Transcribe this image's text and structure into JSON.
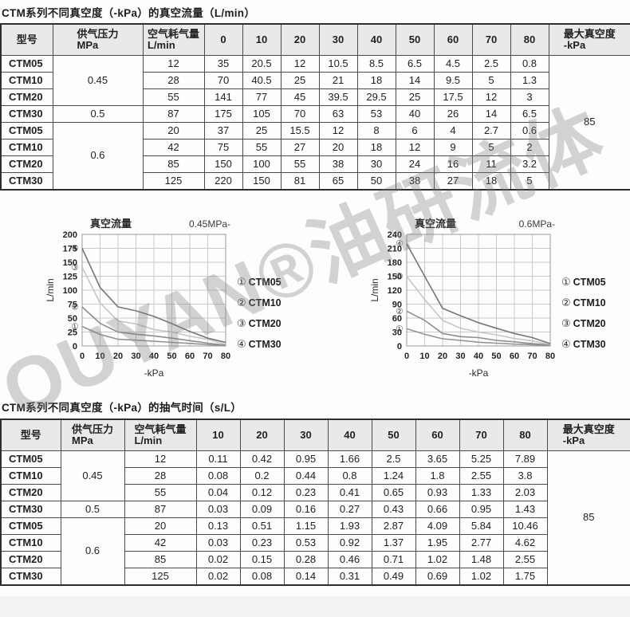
{
  "page": {
    "title1": "CTM系列不同真空度（-kPa）的真空流量（L/min）",
    "title2": "CTM系列不同真空度（-kPa）的抽气时间（s/L）",
    "watermark": "YOUYAN®油研流体"
  },
  "flow_table": {
    "headers": {
      "model": "型号",
      "pressure": [
        "供气压力",
        "MPa"
      ],
      "air_consumption": [
        "空气耗气量",
        "L/min"
      ],
      "vacuum_levels": [
        "0",
        "10",
        "20",
        "30",
        "40",
        "50",
        "60",
        "70",
        "80"
      ],
      "max_vacuum": [
        "最大真空度",
        "-kPa"
      ]
    },
    "max_vacuum_value": "85",
    "rows": [
      {
        "model": "CTM05",
        "pressure": "0.45",
        "pressure_span": 3,
        "air": "12",
        "values": [
          "35",
          "20.5",
          "12",
          "10.5",
          "8.5",
          "6.5",
          "4.5",
          "2.5",
          "0.8"
        ]
      },
      {
        "model": "CTM10",
        "air": "28",
        "values": [
          "70",
          "40.5",
          "25",
          "21",
          "18",
          "14",
          "9.5",
          "5",
          "1.3"
        ]
      },
      {
        "model": "CTM20",
        "air": "55",
        "values": [
          "141",
          "77",
          "45",
          "39.5",
          "29.5",
          "25",
          "17.5",
          "12",
          "3"
        ]
      },
      {
        "model": "CTM30",
        "pressure": "0.5",
        "pressure_span": 1,
        "air": "87",
        "values": [
          "175",
          "105",
          "70",
          "63",
          "53",
          "40",
          "26",
          "14",
          "6.5"
        ]
      },
      {
        "model": "CTM05",
        "pressure": "0.6",
        "pressure_span": 4,
        "air": "20",
        "values": [
          "37",
          "25",
          "15.5",
          "12",
          "8",
          "6",
          "4",
          "2.7",
          "0.6"
        ]
      },
      {
        "model": "CTM10",
        "air": "42",
        "values": [
          "75",
          "55",
          "27",
          "20",
          "18",
          "12",
          "9",
          "5",
          "2"
        ]
      },
      {
        "model": "CTM20",
        "air": "85",
        "values": [
          "150",
          "100",
          "55",
          "38",
          "30",
          "24",
          "16",
          "11",
          "3.2"
        ]
      },
      {
        "model": "CTM30",
        "air": "125",
        "values": [
          "220",
          "150",
          "81",
          "65",
          "50",
          "38",
          "27",
          "18",
          "5"
        ]
      }
    ]
  },
  "time_table": {
    "headers": {
      "model": "型号",
      "pressure": [
        "供气压力",
        "MPa"
      ],
      "air_consumption": [
        "空气耗气量",
        "L/min"
      ],
      "vacuum_levels": [
        "10",
        "20",
        "30",
        "40",
        "50",
        "60",
        "70",
        "80"
      ],
      "max_vacuum": [
        "最大真空度",
        "-kPa"
      ]
    },
    "max_vacuum_value": "85",
    "rows": [
      {
        "model": "CTM05",
        "pressure": "0.45",
        "pressure_span": 3,
        "air": "12",
        "values": [
          "0.11",
          "0.42",
          "0.95",
          "1.66",
          "2.5",
          "3.65",
          "5.25",
          "7.89"
        ]
      },
      {
        "model": "CTM10",
        "air": "28",
        "values": [
          "0.08",
          "0.2",
          "0.44",
          "0.8",
          "1.24",
          "1.8",
          "2.55",
          "3.8"
        ]
      },
      {
        "model": "CTM20",
        "air": "55",
        "values": [
          "0.04",
          "0.12",
          "0.23",
          "0.41",
          "0.65",
          "0.93",
          "1.33",
          "2.03"
        ]
      },
      {
        "model": "CTM30",
        "pressure": "0.5",
        "pressure_span": 1,
        "air": "87",
        "values": [
          "0.03",
          "0.09",
          "0.16",
          "0.27",
          "0.43",
          "0.66",
          "0.95",
          "1.43"
        ]
      },
      {
        "model": "CTM05",
        "pressure": "0.6",
        "pressure_span": 4,
        "air": "20",
        "values": [
          "0.13",
          "0.51",
          "1.15",
          "1.93",
          "2.87",
          "4.09",
          "5.84",
          "10.46"
        ]
      },
      {
        "model": "CTM10",
        "air": "42",
        "values": [
          "0.03",
          "0.23",
          "0.53",
          "0.92",
          "1.37",
          "1.95",
          "2.77",
          "4.62"
        ]
      },
      {
        "model": "CTM20",
        "air": "85",
        "values": [
          "0.02",
          "0.15",
          "0.28",
          "0.46",
          "0.71",
          "1.02",
          "1.48",
          "2.55"
        ]
      },
      {
        "model": "CTM30",
        "air": "125",
        "values": [
          "0.02",
          "0.08",
          "0.14",
          "0.31",
          "0.49",
          "0.69",
          "1.02",
          "1.75"
        ]
      }
    ]
  },
  "chart_data": [
    {
      "type": "line",
      "title": "真空流量",
      "pressure_label": "0.45MPa-",
      "xlabel": "-kPa",
      "ylabel": "L/min",
      "x": [
        0,
        10,
        20,
        30,
        40,
        50,
        60,
        70,
        80
      ],
      "ylim": [
        0,
        200
      ],
      "ytick_step": 25,
      "grid": true,
      "legend_position": "right",
      "series": [
        {
          "name": "CTM05",
          "marker": "①",
          "color": "#949494",
          "values": [
            35,
            20.5,
            12,
            10.5,
            8.5,
            6.5,
            4.5,
            2.5,
            0.8
          ]
        },
        {
          "name": "CTM10",
          "marker": "②",
          "color": "#8e8e8e",
          "values": [
            70,
            40.5,
            25,
            21,
            18,
            14,
            9.5,
            5,
            1.3
          ]
        },
        {
          "name": "CTM20",
          "marker": "③",
          "color": "#c6c6c6",
          "values": [
            141,
            77,
            45,
            39.5,
            29.5,
            25,
            17.5,
            12,
            3
          ]
        },
        {
          "name": "CTM30",
          "marker": "④",
          "color": "#767676",
          "values": [
            175,
            105,
            70,
            63,
            53,
            40,
            26,
            14,
            6.5
          ]
        }
      ]
    },
    {
      "type": "line",
      "title": "真空流量",
      "pressure_label": "0.6MPa-",
      "xlabel": "-kPa",
      "ylabel": "L/min",
      "x": [
        0,
        10,
        20,
        30,
        40,
        50,
        60,
        70,
        80
      ],
      "ylim": [
        0,
        240
      ],
      "ytick_step": 30,
      "grid": true,
      "legend_position": "right",
      "series": [
        {
          "name": "CTM05",
          "marker": "①",
          "color": "#949494",
          "values": [
            37,
            25,
            15.5,
            12,
            8,
            6,
            4,
            2.7,
            0.6
          ]
        },
        {
          "name": "CTM10",
          "marker": "②",
          "color": "#8e8e8e",
          "values": [
            75,
            55,
            27,
            20,
            18,
            12,
            9,
            5,
            2
          ]
        },
        {
          "name": "CTM20",
          "marker": "③",
          "color": "#c6c6c6",
          "values": [
            150,
            100,
            55,
            38,
            30,
            24,
            16,
            11,
            3.2
          ]
        },
        {
          "name": "CTM30",
          "marker": "④",
          "color": "#767676",
          "values": [
            220,
            150,
            81,
            65,
            50,
            38,
            27,
            18,
            5
          ]
        }
      ]
    }
  ]
}
